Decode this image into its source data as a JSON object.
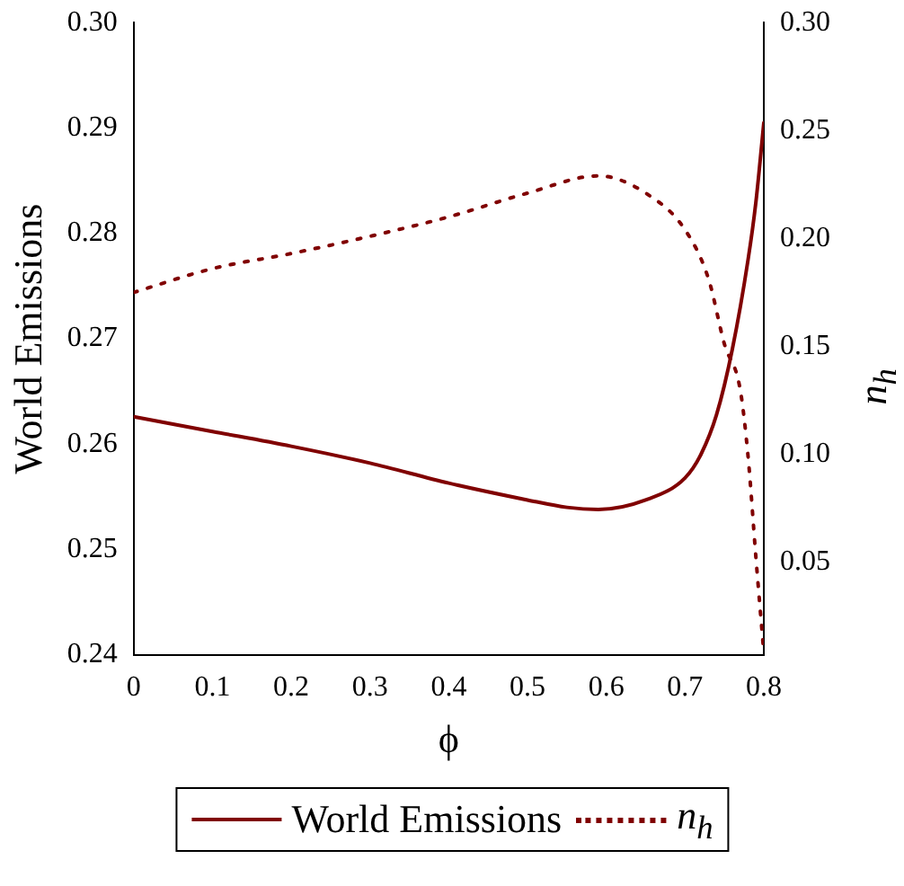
{
  "chart_data": {
    "type": "line",
    "xlabel": "ϕ",
    "ylabel": "World Emissions",
    "y2label": "n$_{h}$",
    "xlim": [
      0,
      0.8
    ],
    "xticks": [
      0,
      0.1,
      0.2,
      0.3,
      0.4,
      0.5,
      0.6,
      0.7,
      0.8
    ],
    "ylim": [
      0.24,
      0.3
    ],
    "yticks": [
      {
        "value": 0.24,
        "label": "0.24"
      },
      0.25,
      0.26,
      0.27,
      0.28,
      0.29,
      {
        "value": 0.3,
        "label": "0.30"
      }
    ],
    "y2lim": [
      0.007,
      0.3
    ],
    "y2ticks": [
      0.05,
      {
        "value": 0.1,
        "label": "0.10"
      },
      0.15,
      {
        "value": 0.2,
        "label": "0.20"
      },
      0.25,
      {
        "value": 0.3,
        "label": "0.30"
      }
    ],
    "legend": "bottom",
    "grid": false,
    "series": [
      {
        "name": "World Emissions",
        "color": "#800000",
        "line_style": "solid",
        "x": [
          0,
          0.1,
          0.2,
          0.3,
          0.4,
          0.5,
          0.55,
          0.59,
          0.65,
          0.7,
          0.72,
          0.74,
          0.76,
          0.78,
          0.79,
          0.8
        ],
        "values": [
          0.2626,
          0.2612,
          0.2598,
          0.2582,
          0.2563,
          0.2547,
          0.254,
          0.2538,
          0.2547,
          0.2568,
          0.259,
          0.2628,
          0.269,
          0.2775,
          0.283,
          0.2905
        ]
      },
      {
        "name": "n$_{h}$",
        "color": "#800000",
        "line_style": "dotted",
        "axis": "y2",
        "x": [
          0,
          0.1,
          0.2,
          0.3,
          0.4,
          0.5,
          0.59,
          0.65,
          0.7,
          0.73,
          0.75,
          0.77,
          0.78,
          0.79,
          0.8
        ],
        "values": [
          0.175,
          0.186,
          0.193,
          0.201,
          0.21,
          0.221,
          0.229,
          0.221,
          0.204,
          0.181,
          0.151,
          0.13,
          0.099,
          0.052,
          0.008
        ]
      }
    ]
  }
}
